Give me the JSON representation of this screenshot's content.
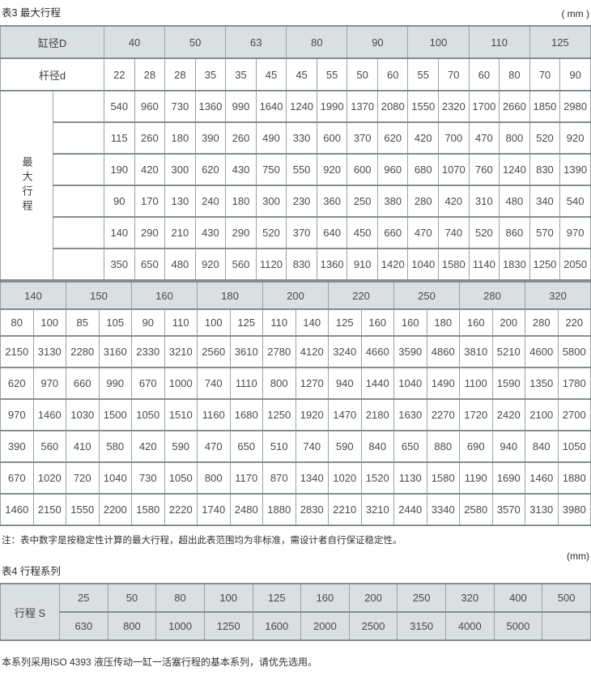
{
  "page": {
    "table3_title": "表3 最大行程",
    "unit_top": "( mm )",
    "note": "注：表中数字是按稳定性计算的最大行程，超出此表范围均为非标准，需设计者自行保证稳定性。",
    "unit_table4": "(mm)",
    "table4_title": "表4 行程系列",
    "footer": "本系列采用ISO 4393 液压传动一缸一活塞行程的基本系列，请优先选用。"
  },
  "colors": {
    "header_bg": "#dadfe2",
    "border_vertical": "#9aa1a5",
    "border_horizontal": "#858d91",
    "text": "#4a4a4a"
  },
  "table3": {
    "part1": {
      "bore_label": "缸径D",
      "rod_label": "杆径d",
      "stroke_label": "最大行程",
      "bores": [
        "40",
        "50",
        "63",
        "80",
        "90",
        "100",
        "110",
        "125"
      ],
      "rods": [
        "22",
        "28",
        "28",
        "35",
        "35",
        "45",
        "45",
        "55",
        "50",
        "60",
        "55",
        "70",
        "60",
        "80",
        "70",
        "90"
      ],
      "rows": [
        [
          "540",
          "960",
          "730",
          "1360",
          "990",
          "1640",
          "1240",
          "1990",
          "1370",
          "2080",
          "1550",
          "2320",
          "1700",
          "2660",
          "1850",
          "2980"
        ],
        [
          "115",
          "260",
          "180",
          "390",
          "260",
          "490",
          "330",
          "600",
          "370",
          "620",
          "420",
          "700",
          "470",
          "800",
          "520",
          "920"
        ],
        [
          "190",
          "420",
          "300",
          "620",
          "430",
          "750",
          "550",
          "920",
          "600",
          "960",
          "680",
          "1070",
          "760",
          "1240",
          "830",
          "1390"
        ],
        [
          "90",
          "170",
          "130",
          "240",
          "180",
          "300",
          "230",
          "360",
          "250",
          "380",
          "280",
          "420",
          "310",
          "480",
          "340",
          "540"
        ],
        [
          "140",
          "290",
          "210",
          "430",
          "290",
          "520",
          "370",
          "640",
          "450",
          "660",
          "470",
          "740",
          "520",
          "860",
          "570",
          "970"
        ],
        [
          "350",
          "650",
          "480",
          "920",
          "560",
          "1120",
          "830",
          "1360",
          "910",
          "1420",
          "1040",
          "1580",
          "1140",
          "1830",
          "1250",
          "2050"
        ]
      ]
    },
    "part2": {
      "bores": [
        "140",
        "150",
        "160",
        "180",
        "200",
        "220",
        "250",
        "280",
        "320"
      ],
      "rods": [
        "80",
        "100",
        "85",
        "105",
        "90",
        "110",
        "100",
        "125",
        "110",
        "140",
        "125",
        "160",
        "160",
        "180",
        "160",
        "200",
        "280",
        "220"
      ],
      "rows": [
        [
          "2150",
          "3130",
          "2280",
          "3160",
          "2330",
          "3210",
          "2560",
          "3610",
          "2780",
          "4120",
          "3240",
          "4660",
          "3590",
          "4860",
          "3810",
          "5210",
          "4600",
          "5800"
        ],
        [
          "620",
          "970",
          "660",
          "990",
          "670",
          "1000",
          "740",
          "1110",
          "800",
          "1270",
          "940",
          "1440",
          "1040",
          "1490",
          "1100",
          "1590",
          "1350",
          "1780"
        ],
        [
          "970",
          "1460",
          "1030",
          "1500",
          "1050",
          "1510",
          "1160",
          "1680",
          "1250",
          "1920",
          "1470",
          "2180",
          "1630",
          "2270",
          "1720",
          "2420",
          "2100",
          "2700"
        ],
        [
          "390",
          "560",
          "410",
          "580",
          "420",
          "590",
          "470",
          "650",
          "510",
          "740",
          "590",
          "840",
          "650",
          "880",
          "690",
          "940",
          "840",
          "1050"
        ],
        [
          "670",
          "1020",
          "720",
          "1040",
          "730",
          "1050",
          "800",
          "1170",
          "870",
          "1340",
          "1020",
          "1520",
          "1130",
          "1580",
          "1190",
          "1690",
          "1460",
          "1880"
        ],
        [
          "1460",
          "2150",
          "1550",
          "2200",
          "1580",
          "2220",
          "1740",
          "2480",
          "1880",
          "2830",
          "2210",
          "3210",
          "2440",
          "3340",
          "2580",
          "3570",
          "3130",
          "3980"
        ]
      ]
    }
  },
  "table4": {
    "label": "行程 S",
    "row1": [
      "25",
      "50",
      "80",
      "100",
      "125",
      "160",
      "200",
      "250",
      "320",
      "400",
      "500"
    ],
    "row2": [
      "630",
      "800",
      "1000",
      "1250",
      "1600",
      "2000",
      "2500",
      "3150",
      "4000",
      "5000",
      ""
    ]
  }
}
